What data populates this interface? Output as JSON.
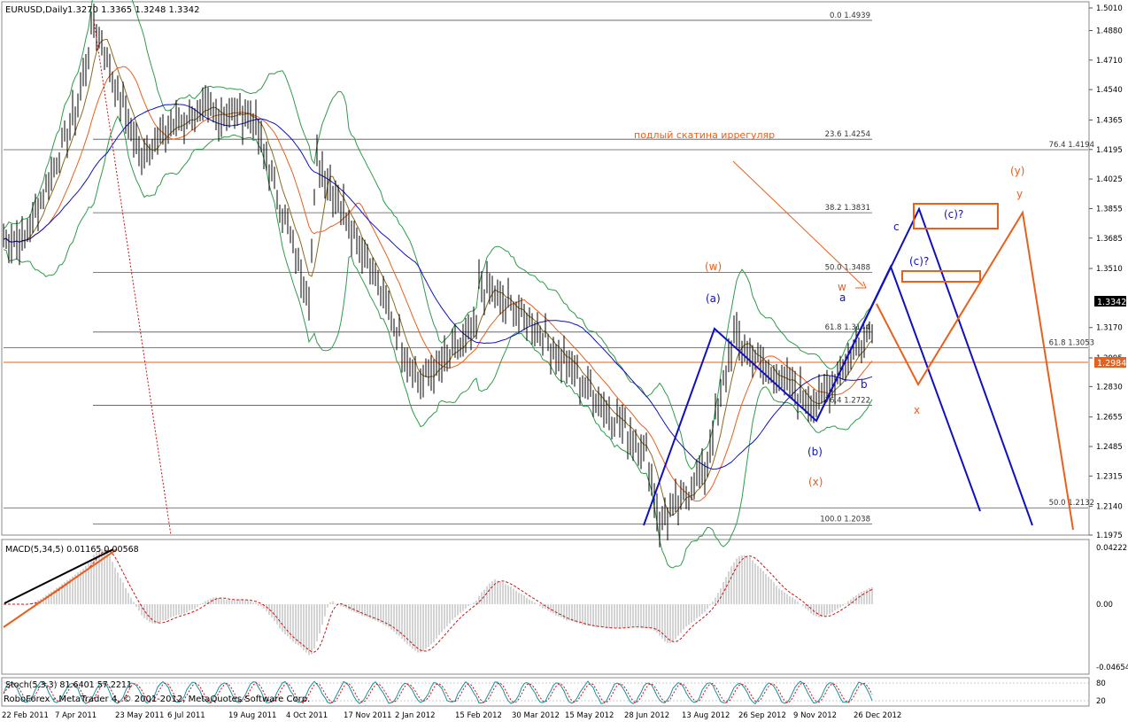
{
  "main_panel": {
    "title": "EURUSD,Daily",
    "ohlc": "1.3270 1.3365 1.3248 1.3342",
    "price_badge": "1.3342",
    "orange_badge": "1.2984"
  },
  "annotation_ru": "подлый скатина иррегуляр",
  "fib_levels": [
    {
      "label": "0.0 1.4939",
      "price": 1.4939
    },
    {
      "label": "23.6 1.4254",
      "price": 1.4254
    },
    {
      "label": "38.2 1.3831",
      "price": 1.3831
    },
    {
      "label": "50.0 1.3488",
      "price": 1.3488
    },
    {
      "label": "61.8 1.3144",
      "price": 1.3144
    },
    {
      "label": "76.4 1.2722",
      "price": 1.2722
    },
    {
      "label": "100.0 1.2038",
      "price": 1.2038
    }
  ],
  "extra_levels": [
    {
      "label": "76.4 1.4194",
      "price": 1.4194
    },
    {
      "label": "61.8 1.3053",
      "price": 1.3053
    },
    {
      "label": "50.0 1.2132",
      "price": 1.2132
    }
  ],
  "wave_labels": {
    "w_paren": "(w)",
    "w": "w",
    "x_paren": "(x)",
    "x": "x",
    "y_paren": "(y)",
    "y": "y",
    "a_paren": "(a)",
    "a": "a",
    "b_paren": "(b)",
    "b": "b",
    "c": "c",
    "c_q1": "(c)?",
    "c_q2": "(c)?"
  },
  "macd": {
    "label": "MACD(5,34,5) 0.01165 0.00568",
    "ticks": [
      "0.04222",
      "0.00",
      "-0.04654"
    ]
  },
  "stoch": {
    "label": "Stoch(5,3,3) 81.6401 57.2211",
    "ticks": [
      "80",
      "20"
    ]
  },
  "footer": "RoboForex - MetaTrader 4, © 2001-2012, MetaQuotes Software Corp.",
  "chart_data": {
    "type": "candlestick",
    "symbol": "EURUSD",
    "timeframe": "Daily",
    "ylim": [
      1.1975,
      1.505
    ],
    "y_ticks": [
      "1.5010",
      "1.4880",
      "1.4710",
      "1.4540",
      "1.4365",
      "1.4195",
      "1.4025",
      "1.3855",
      "1.3685",
      "1.3510",
      "1.3170",
      "1.2995",
      "1.2830",
      "1.2655",
      "1.2485",
      "1.2315",
      "1.2140",
      "1.1975"
    ],
    "x_ticks": [
      "22 Feb 2011",
      "7 Apr 2011",
      "23 May 2011",
      "6 Jul 2011",
      "19 Aug 2011",
      "4 Oct 2011",
      "17 Nov 2011",
      "2 Jan 2012",
      "15 Feb 2012",
      "30 Mar 2012",
      "15 May 2012",
      "28 Jun 2012",
      "13 Aug 2012",
      "26 Sep 2012",
      "9 Nov 2012",
      "26 Dec 2012"
    ],
    "close_path": [
      [
        "22 Feb 2011",
        1.368
      ],
      [
        "7 Apr 2011",
        1.445
      ],
      [
        "~ early May 2011",
        1.4939
      ],
      [
        "23 May 2011",
        1.418
      ],
      [
        "6 Jul 2011",
        1.44
      ],
      [
        "19 Aug 2011",
        1.44
      ],
      [
        "4 Oct 2011",
        1.335
      ],
      [
        "~ late Oct 2011",
        1.415
      ],
      [
        "17 Nov 2011",
        1.358
      ],
      [
        "2 Jan 2012",
        1.285
      ],
      [
        "15 Feb 2012",
        1.315
      ],
      [
        "~ late Feb 2012",
        1.345
      ],
      [
        "30 Mar 2012",
        1.318
      ],
      [
        "15 May 2012",
        1.282
      ],
      [
        "28 Jun 2012",
        1.245
      ],
      [
        "~ 24 Jul 2012",
        1.2038
      ],
      [
        "13 Aug 2012",
        1.234
      ],
      [
        "~ 17 Sep 2012",
        1.312
      ],
      [
        "26 Sep 2012",
        1.295
      ],
      [
        "9 Nov 2012",
        1.272
      ],
      [
        "26 Dec 2012",
        1.322
      ],
      [
        "~ 2 Jan 2013",
        1.3342
      ]
    ]
  }
}
